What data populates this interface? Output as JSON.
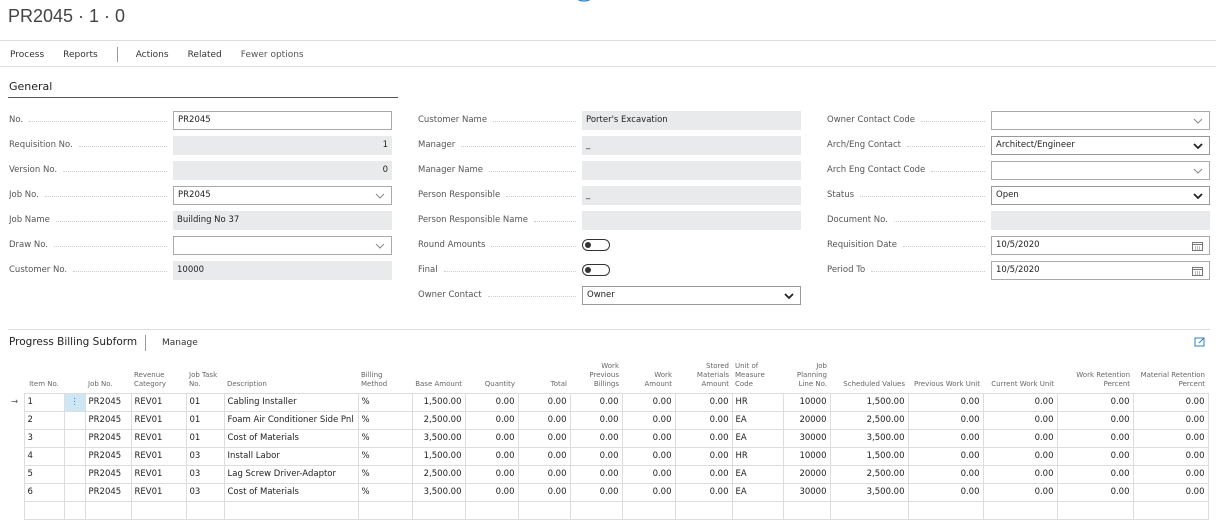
{
  "header": {
    "title": "PR2045 · 1 · 0"
  },
  "menu": [
    "Process",
    "Reports",
    "Actions",
    "Related",
    "Fewer options"
  ],
  "general": {
    "title": "General",
    "columns": [
      [
        {
          "label": "No.",
          "value": "PR2045"
        },
        {
          "label": "Requisition No.",
          "value": "1"
        },
        {
          "label": "Version No.",
          "value": "0"
        },
        {
          "label": "Job No.",
          "value": "PR2045"
        },
        {
          "label": "Job Name",
          "value": "Building No 37"
        },
        {
          "label": "Draw No."
        },
        {
          "label": "Customer No.",
          "value": "10000"
        }
      ],
      [
        {
          "label": "Customer Name",
          "value": "Porter's Excavation"
        },
        {
          "label": "Manager",
          "value": "_"
        },
        {
          "label": "Manager Name"
        },
        {
          "label": "Person Responsible",
          "value": "_"
        },
        {
          "label": "Person Responsible Name"
        },
        {
          "label": "Round Amounts"
        },
        {
          "label": "Final"
        },
        {
          "label": "Owner Contact",
          "value": "Owner"
        }
      ],
      [
        {
          "label": "Owner Contact Code"
        },
        {
          "label": "Arch/Eng Contact",
          "value": "Architect/Engineer"
        },
        {
          "label": "Arch Eng Contact Code"
        },
        {
          "label": "Status",
          "value": "Open"
        },
        {
          "label": "Document No."
        },
        {
          "label": "Requisition Date",
          "value": "10/5/2020"
        },
        {
          "label": "Period To",
          "value": "10/5/2020"
        }
      ]
    ]
  },
  "subform": {
    "title": "Progress Billing Subform",
    "action": "Manage",
    "columns": [
      "Item No.",
      "Job No.",
      "Revenue Category",
      "Job Task No.",
      "Description",
      "Billing Method",
      "Base Amount",
      "Quantity",
      "Total",
      "Work Previous Billings",
      "Work Amount",
      "Stored Materials Amount",
      "Unit of Measure Code",
      "Job Planning Line No.",
      "Scheduled Values",
      "Previous Work Unit",
      "Current Work Unit",
      "Work Retention Percent",
      "Material Retention Percent"
    ],
    "rows": [
      [
        "1",
        "PR2045",
        "REV01",
        "01",
        "Cabling Installer",
        "%",
        "1,500.00",
        "0.00",
        "0.00",
        "0.00",
        "0.00",
        "0.00",
        "HR",
        "10000",
        "1,500.00",
        "0.00",
        "0.00",
        "0.00",
        "0.00"
      ],
      [
        "2",
        "PR2045",
        "REV01",
        "01",
        "Foam Air Conditioner Side Pnl",
        "%",
        "2,500.00",
        "0.00",
        "0.00",
        "0.00",
        "0.00",
        "0.00",
        "EA",
        "20000",
        "2,500.00",
        "0.00",
        "0.00",
        "0.00",
        "0.00"
      ],
      [
        "3",
        "PR2045",
        "REV01",
        "01",
        "Cost of Materials",
        "%",
        "3,500.00",
        "0.00",
        "0.00",
        "0.00",
        "0.00",
        "0.00",
        "EA",
        "30000",
        "3,500.00",
        "0.00",
        "0.00",
        "0.00",
        "0.00"
      ],
      [
        "4",
        "PR2045",
        "REV01",
        "03",
        "Install Labor",
        "%",
        "1,500.00",
        "0.00",
        "0.00",
        "0.00",
        "0.00",
        "0.00",
        "HR",
        "10000",
        "1,500.00",
        "0.00",
        "0.00",
        "0.00",
        "0.00"
      ],
      [
        "5",
        "PR2045",
        "REV01",
        "03",
        "Lag Screw Driver-Adaptor",
        "%",
        "2,500.00",
        "0.00",
        "0.00",
        "0.00",
        "0.00",
        "0.00",
        "EA",
        "20000",
        "2,500.00",
        "0.00",
        "0.00",
        "0.00",
        "0.00"
      ],
      [
        "6",
        "PR2045",
        "REV01",
        "03",
        "Cost of Materials",
        "%",
        "3,500.00",
        "0.00",
        "0.00",
        "0.00",
        "0.00",
        "0.00",
        "EA",
        "30000",
        "3,500.00",
        "0.00",
        "0.00",
        "0.00",
        "0.00"
      ]
    ]
  }
}
